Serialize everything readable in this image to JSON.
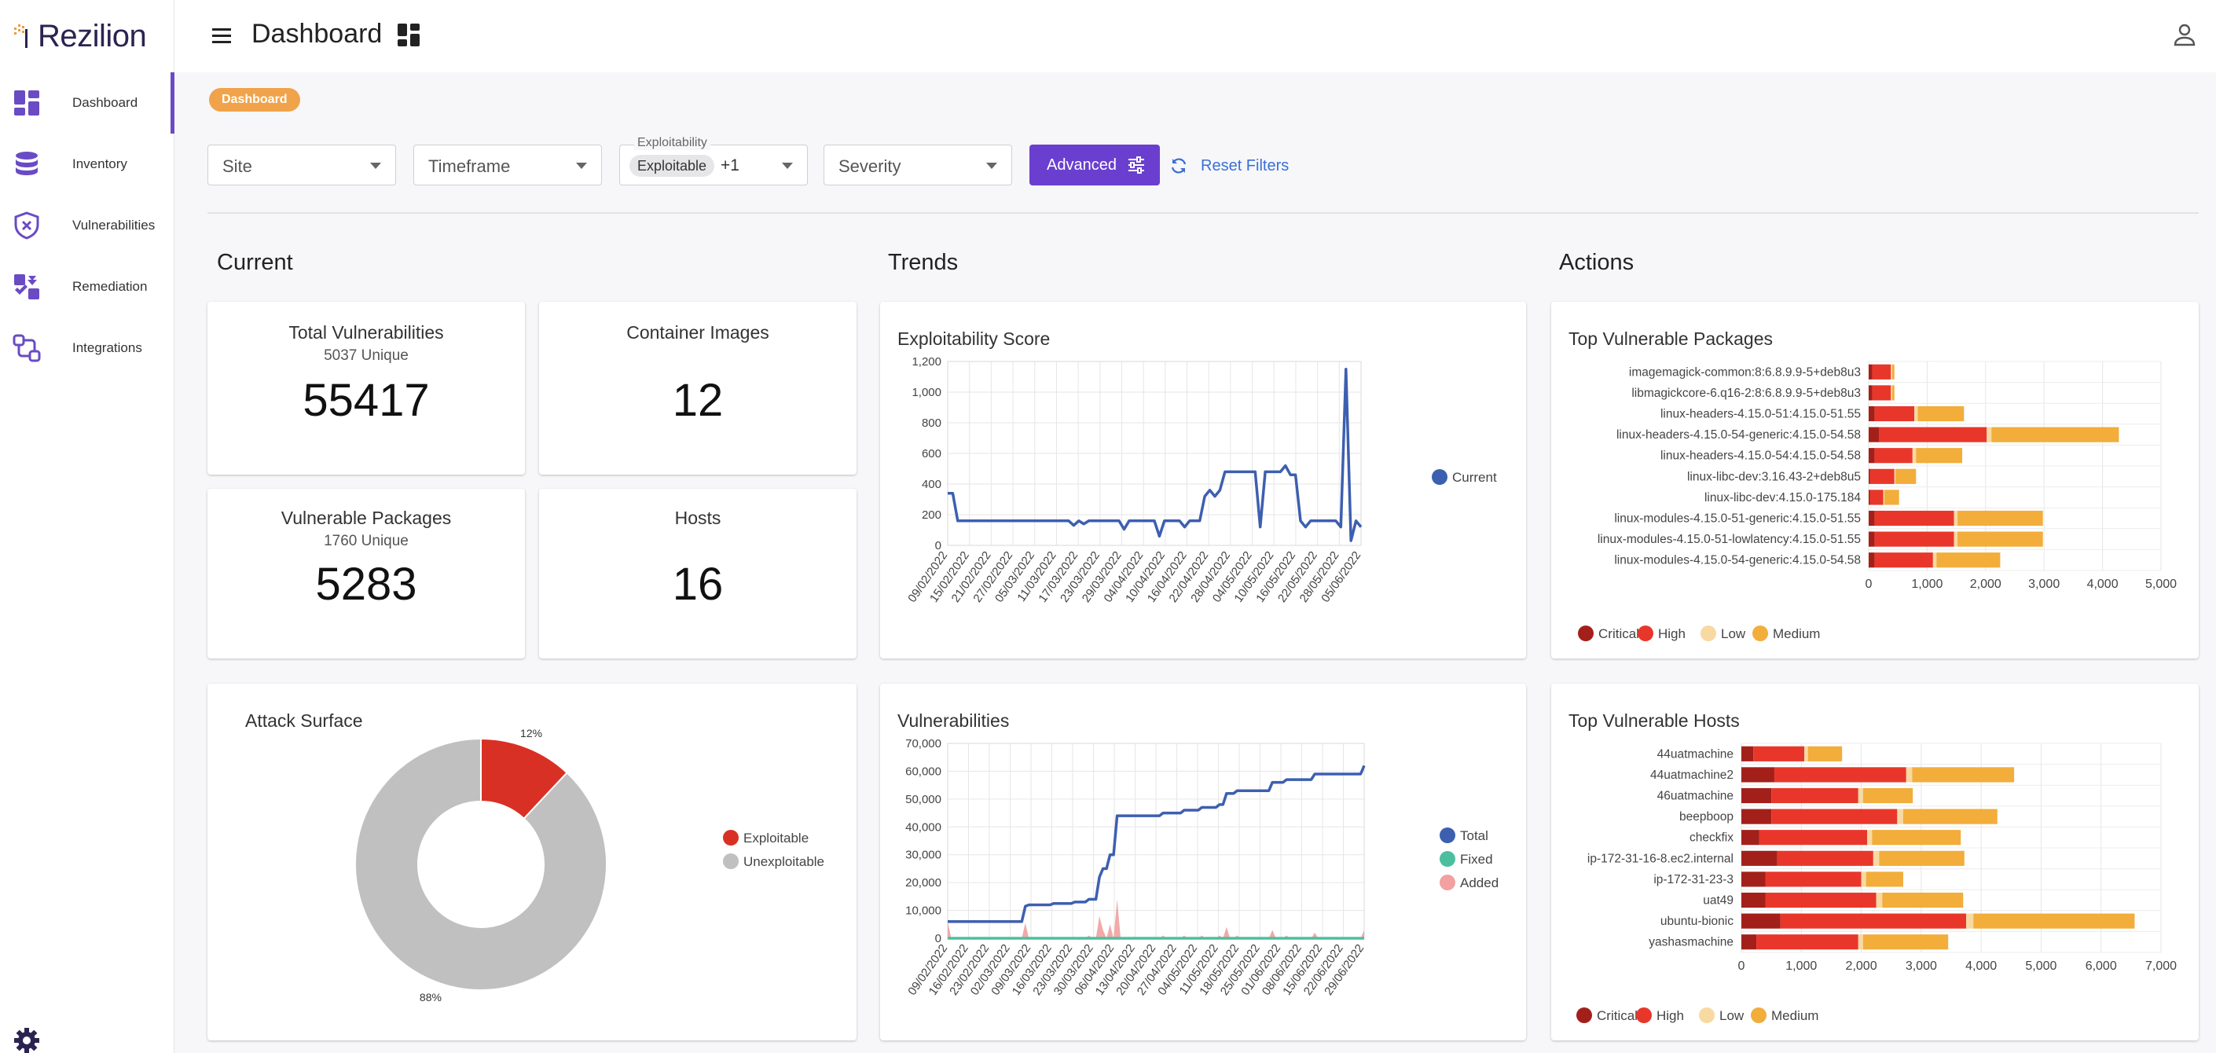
{
  "app": {
    "brand": "Rezilion",
    "page_title": "Dashboard"
  },
  "sidebar": {
    "items": [
      {
        "label": "Dashboard",
        "icon": "dashboard-icon"
      },
      {
        "label": "Inventory",
        "icon": "database-icon"
      },
      {
        "label": "Vulnerabilities",
        "icon": "shield-x-icon"
      },
      {
        "label": "Remediation",
        "icon": "puzzle-icon"
      },
      {
        "label": "Integrations",
        "icon": "integrations-icon"
      }
    ]
  },
  "breadcrumb": "Dashboard",
  "filters": {
    "site": "Site",
    "timeframe": "Timeframe",
    "exploitability_label": "Exploitability",
    "exploitability_chip": "Exploitable",
    "exploitability_more": "+1",
    "severity": "Severity",
    "advanced": "Advanced",
    "reset": "Reset Filters"
  },
  "sections": {
    "current": "Current",
    "trends": "Trends",
    "actions": "Actions"
  },
  "stats": {
    "total_vulns": {
      "title": "Total Vulnerabilities",
      "sub": "5037 Unique",
      "value": "55417"
    },
    "container_images": {
      "title": "Container Images",
      "value": "12"
    },
    "vuln_packages": {
      "title": "Vulnerable Packages",
      "sub": "1760 Unique",
      "value": "5283"
    },
    "hosts": {
      "title": "Hosts",
      "value": "16"
    }
  },
  "colors": {
    "accent": "#6a3fcf",
    "critical": "#a3201a",
    "high": "#e8372a",
    "low": "#f8d9a2",
    "medium": "#f2ad3b",
    "line": "#3d5fb0",
    "fixed": "#4dbf9f",
    "added": "#f2a0a0",
    "exploitable": "#d93025",
    "unexploitable": "#c0c0c0"
  },
  "chart_data": [
    {
      "id": "exploitability",
      "type": "line",
      "title": "Exploitability Score",
      "ylim": [
        0,
        1200
      ],
      "yticks": [
        "0",
        "200",
        "400",
        "600",
        "800",
        "1,000",
        "1,200"
      ],
      "xticks": [
        "09/02/2022",
        "15/02/2022",
        "21/02/2022",
        "27/02/2022",
        "05/03/2022",
        "11/03/2022",
        "17/03/2022",
        "23/03/2022",
        "29/03/2022",
        "04/04/2022",
        "10/04/2022",
        "16/04/2022",
        "22/04/2022",
        "28/04/2022",
        "04/05/2022",
        "10/05/2022",
        "16/05/2022",
        "22/05/2022",
        "28/05/2022",
        "05/06/2022"
      ],
      "series": [
        {
          "name": "Current",
          "values": [
            340,
            340,
            160,
            160,
            160,
            160,
            160,
            160,
            160,
            160,
            160,
            160,
            160,
            160,
            160,
            160,
            160,
            160,
            160,
            160,
            160,
            160,
            160,
            160,
            160,
            130,
            160,
            140,
            160,
            160,
            160,
            160,
            160,
            160,
            160,
            105,
            160,
            160,
            160,
            160,
            160,
            160,
            60,
            160,
            160,
            160,
            160,
            120,
            160,
            160,
            160,
            320,
            360,
            320,
            360,
            480,
            480,
            480,
            480,
            480,
            480,
            480,
            120,
            480,
            480,
            480,
            480,
            520,
            460,
            460,
            160,
            120,
            160,
            160,
            160,
            160,
            160,
            160,
            120,
            1150,
            30,
            160,
            120
          ]
        }
      ],
      "legend_position": "right"
    },
    {
      "id": "vulnerabilities",
      "type": "line",
      "title": "Vulnerabilities",
      "ylim": [
        0,
        70000
      ],
      "yticks": [
        "0",
        "10,000",
        "20,000",
        "30,000",
        "40,000",
        "50,000",
        "60,000",
        "70,000"
      ],
      "xticks": [
        "09/02/2022",
        "16/02/2022",
        "23/02/2022",
        "02/03/2022",
        "09/03/2022",
        "16/03/2022",
        "23/03/2022",
        "30/03/2022",
        "06/04/2022",
        "13/04/2022",
        "20/04/2022",
        "27/04/2022",
        "04/05/2022",
        "11/05/2022",
        "18/05/2022",
        "25/05/2022",
        "01/06/2022",
        "08/06/2022",
        "15/06/2022",
        "22/06/2022",
        "29/06/2022"
      ],
      "series": [
        {
          "name": "Total",
          "values": [
            6000,
            6000,
            6000,
            6000,
            6000,
            6000,
            6000,
            6000,
            6000,
            6000,
            6000,
            6000,
            6000,
            6000,
            6000,
            6000,
            6000,
            6000,
            6000,
            6000,
            6000,
            6000,
            11500,
            12000,
            12000,
            12000,
            12000,
            12000,
            12000,
            12000,
            12500,
            12500,
            12500,
            12500,
            12500,
            12500,
            13000,
            13000,
            13000,
            13000,
            14000,
            14000,
            14000,
            22000,
            25000,
            25000,
            30000,
            30000,
            44000,
            44000,
            44000,
            44000,
            44000,
            44000,
            44000,
            44000,
            44000,
            44000,
            44000,
            44000,
            44000,
            45000,
            45000,
            45000,
            45000,
            45000,
            45000,
            46000,
            46000,
            46000,
            46000,
            46000,
            47000,
            47000,
            47000,
            47000,
            47000,
            48000,
            48000,
            52000,
            52000,
            52000,
            53000,
            53000,
            53000,
            53000,
            53000,
            53000,
            53000,
            53000,
            53000,
            53000,
            56000,
            56000,
            56000,
            56000,
            57000,
            57000,
            57000,
            57000,
            57000,
            57000,
            57000,
            57000,
            59000,
            59000,
            59000,
            59000,
            59000,
            59000,
            59000,
            59000,
            59000,
            59000,
            59000,
            59000,
            59000,
            59000,
            62000
          ]
        },
        {
          "name": "Fixed",
          "values": [
            0,
            0,
            0,
            0,
            0,
            0,
            0,
            0,
            0,
            0,
            0,
            0,
            0,
            0,
            0,
            0,
            0,
            0,
            0,
            0,
            0,
            0,
            0,
            0,
            0,
            0,
            0,
            0,
            0,
            0,
            0,
            0,
            0,
            0,
            0,
            0,
            0,
            0,
            0,
            0,
            0,
            0,
            0,
            0,
            0,
            0,
            0,
            0,
            0,
            0,
            0,
            0,
            0,
            0,
            0,
            0,
            0,
            0,
            0,
            0,
            0,
            0,
            0,
            0,
            0,
            0,
            0,
            0,
            0,
            0,
            0,
            0,
            0,
            0,
            0,
            0,
            0,
            0,
            0,
            0,
            0,
            0,
            0,
            0,
            0,
            0,
            0,
            0,
            0,
            0,
            0,
            0,
            0,
            0,
            0,
            0,
            0,
            0,
            0,
            0,
            0,
            0,
            0,
            0,
            0,
            0,
            0,
            0,
            0,
            0,
            0,
            0,
            0,
            0,
            0,
            0,
            0,
            0,
            0,
            0,
            0
          ]
        },
        {
          "name": "Added",
          "values": [
            6000,
            0,
            0,
            0,
            0,
            0,
            0,
            0,
            0,
            0,
            0,
            0,
            0,
            0,
            0,
            0,
            0,
            0,
            0,
            0,
            0,
            0,
            5500,
            0,
            0,
            0,
            0,
            0,
            0,
            0,
            500,
            0,
            0,
            0,
            0,
            0,
            500,
            0,
            0,
            0,
            1000,
            0,
            0,
            8000,
            3000,
            0,
            5000,
            0,
            14000,
            0,
            0,
            0,
            0,
            0,
            0,
            0,
            0,
            0,
            0,
            0,
            0,
            1000,
            0,
            0,
            0,
            0,
            0,
            1000,
            0,
            0,
            0,
            0,
            1000,
            0,
            0,
            0,
            0,
            1000,
            0,
            4000,
            0,
            0,
            1000,
            0,
            0,
            0,
            0,
            0,
            0,
            0,
            0,
            0,
            3000,
            0,
            0,
            0,
            1000,
            0,
            0,
            0,
            0,
            0,
            0,
            0,
            2000,
            0,
            0,
            0,
            0,
            0,
            0,
            0,
            0,
            0,
            0,
            0,
            0,
            0,
            3000
          ]
        }
      ],
      "legend_position": "right"
    },
    {
      "id": "attack_surface",
      "type": "pie",
      "title": "Attack Surface",
      "labels": [
        "Exploitable",
        "Unexploitable"
      ],
      "values": [
        12,
        88
      ],
      "slice_labels": [
        "12%",
        "88%"
      ],
      "legend_position": "right"
    },
    {
      "id": "top_packages",
      "type": "bar",
      "orientation": "horizontal",
      "stacked": true,
      "title": "Top Vulnerable Packages",
      "xlim": [
        0,
        5000
      ],
      "xticks": [
        "0",
        "1,000",
        "2,000",
        "3,000",
        "4,000",
        "5,000"
      ],
      "categories": [
        "imagemagick-common:8:6.8.9.9-5+deb8u3",
        "libmagickcore-6.q16-2:8:6.8.9.9-5+deb8u3",
        "linux-headers-4.15.0-51:4.15.0-51.55",
        "linux-headers-4.15.0-54-generic:4.15.0-54.58",
        "linux-headers-4.15.0-54:4.15.0-54.58",
        "linux-libc-dev:3.16.43-2+deb8u5",
        "linux-libc-dev:4.15.0-175.184",
        "linux-modules-4.15.0-51-generic:4.15.0-51.55",
        "linux-modules-4.15.0-51-lowlatency:4.15.0-51.55",
        "linux-modules-4.15.0-54-generic:4.15.0-54.58"
      ],
      "series": [
        {
          "name": "Critical",
          "values": [
            60,
            60,
            100,
            180,
            100,
            20,
            20,
            100,
            100,
            100
          ]
        },
        {
          "name": "High",
          "values": [
            320,
            320,
            680,
            1840,
            650,
            420,
            230,
            1360,
            1360,
            1000
          ]
        },
        {
          "name": "Low",
          "values": [
            20,
            20,
            60,
            80,
            60,
            20,
            20,
            60,
            60,
            60
          ]
        },
        {
          "name": "Medium",
          "values": [
            40,
            40,
            790,
            2180,
            790,
            350,
            250,
            1460,
            1460,
            1090
          ]
        }
      ],
      "legend_position": "bottom"
    },
    {
      "id": "top_hosts",
      "type": "bar",
      "orientation": "horizontal",
      "stacked": true,
      "title": "Top Vulnerable Hosts",
      "xlim": [
        0,
        7000
      ],
      "xticks": [
        "0",
        "1,000",
        "2,000",
        "3,000",
        "4,000",
        "5,000",
        "6,000",
        "7,000"
      ],
      "categories": [
        "44uatmachine",
        "44uatmachine2",
        "46uatmachine",
        "beepboop",
        "checkfix",
        "ip-172-31-16-8.ec2.internal",
        "ip-172-31-23-3",
        "uat49",
        "ubuntu-bionic",
        "yashasmachine"
      ],
      "series": [
        {
          "name": "Critical",
          "values": [
            200,
            550,
            500,
            500,
            300,
            600,
            400,
            400,
            650,
            250
          ]
        },
        {
          "name": "High",
          "values": [
            850,
            2200,
            1450,
            2100,
            1800,
            1600,
            1600,
            1850,
            3100,
            1700
          ]
        },
        {
          "name": "Low",
          "values": [
            60,
            100,
            80,
            100,
            80,
            100,
            80,
            100,
            120,
            80
          ]
        },
        {
          "name": "Medium",
          "values": [
            570,
            1700,
            830,
            1570,
            1480,
            1420,
            620,
            1350,
            2690,
            1420
          ]
        }
      ],
      "legend_position": "bottom"
    }
  ]
}
